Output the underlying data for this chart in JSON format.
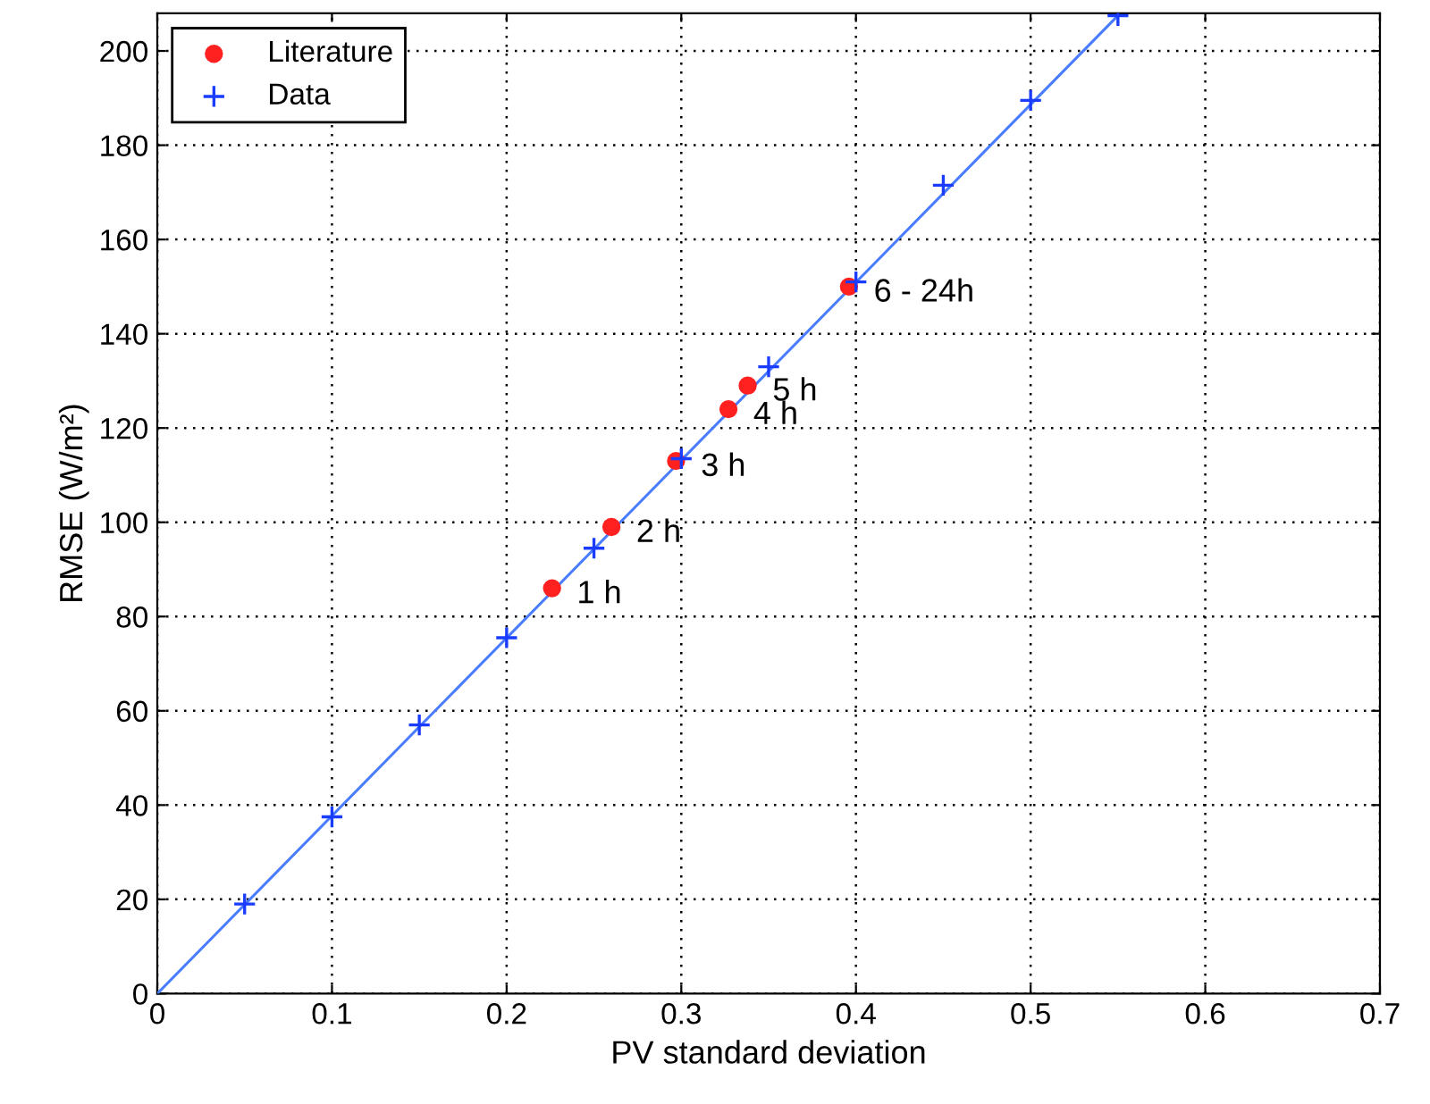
{
  "chart_data": {
    "type": "scatter",
    "xlabel": "PV standard deviation",
    "ylabel": "RMSE (W/m²)",
    "xlim": [
      0,
      0.7
    ],
    "xticks": [
      0,
      0.1,
      0.2,
      0.3,
      0.4,
      0.5,
      0.6,
      0.7
    ],
    "ylim": [
      0,
      208
    ],
    "yticks": [
      0,
      20,
      40,
      60,
      80,
      100,
      120,
      140,
      160,
      180,
      200
    ],
    "grid": true,
    "legend": "top left",
    "series": [
      {
        "name": "Literature",
        "marker": "circle",
        "color": "#ff2020",
        "x": [
          0.226,
          0.26,
          0.297,
          0.327,
          0.338,
          0.396
        ],
        "values": [
          86,
          99,
          113,
          124,
          129,
          150
        ]
      },
      {
        "name": "Data",
        "marker": "cross",
        "color": "#1a3cff",
        "x": [
          0.05,
          0.1,
          0.15,
          0.2,
          0.25,
          0.3,
          0.35,
          0.4,
          0.45,
          0.5,
          0.55
        ],
        "values": [
          19,
          37.5,
          57,
          75.5,
          94.5,
          113.5,
          133,
          151,
          171.5,
          189.5,
          207.5
        ]
      },
      {
        "type": "line",
        "marker": "none",
        "line_style": "solid",
        "color": "#4a7cff",
        "x": [
          0,
          0.55
        ],
        "values": [
          0,
          207.5
        ]
      }
    ],
    "annotations": [
      {
        "text": "1 h",
        "x": 0.226,
        "y": 86
      },
      {
        "text": "2 h",
        "x": 0.26,
        "y": 99
      },
      {
        "text": "3 h",
        "x": 0.297,
        "y": 113
      },
      {
        "text": "4 h",
        "x": 0.327,
        "y": 124
      },
      {
        "text": "5 h",
        "x": 0.338,
        "y": 129
      },
      {
        "text": "6 - 24h",
        "x": 0.396,
        "y": 150
      }
    ]
  }
}
